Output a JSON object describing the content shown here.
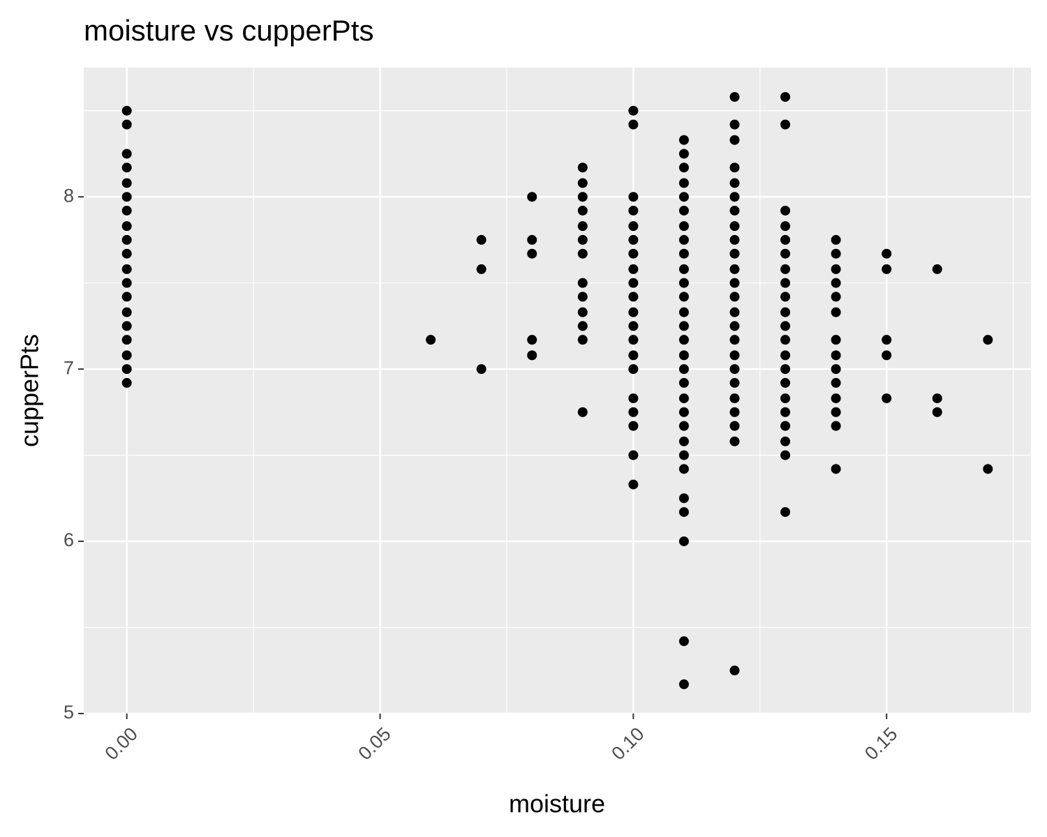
{
  "chart_data": {
    "type": "scatter",
    "title": "moisture vs cupperPts",
    "x_label": "moisture",
    "y_label": "cupperPts",
    "x": [
      0,
      0,
      0,
      0,
      0,
      0,
      0,
      0,
      0,
      0,
      0,
      0,
      0,
      0,
      0,
      0,
      0,
      0,
      0,
      0.06,
      0.07,
      0.07,
      0.07,
      0.08,
      0.08,
      0.08,
      0.08,
      0.08,
      0.09,
      0.09,
      0.09,
      0.09,
      0.09,
      0.09,
      0.09,
      0.09,
      0.09,
      0.09,
      0.09,
      0.09,
      0.09,
      0.1,
      0.1,
      0.1,
      0.1,
      0.1,
      0.1,
      0.1,
      0.1,
      0.1,
      0.1,
      0.1,
      0.1,
      0.1,
      0.1,
      0.1,
      0.1,
      0.1,
      0.1,
      0.1,
      0.1,
      0.11,
      0.11,
      0.11,
      0.11,
      0.11,
      0.11,
      0.11,
      0.11,
      0.11,
      0.11,
      0.11,
      0.11,
      0.11,
      0.11,
      0.11,
      0.11,
      0.11,
      0.11,
      0.11,
      0.11,
      0.11,
      0.11,
      0.11,
      0.11,
      0.11,
      0.11,
      0.11,
      0.11,
      0.11,
      0.12,
      0.12,
      0.12,
      0.12,
      0.12,
      0.12,
      0.12,
      0.12,
      0.12,
      0.12,
      0.12,
      0.12,
      0.12,
      0.12,
      0.12,
      0.12,
      0.12,
      0.12,
      0.12,
      0.12,
      0.12,
      0.12,
      0.12,
      0.12,
      0.13,
      0.13,
      0.13,
      0.13,
      0.13,
      0.13,
      0.13,
      0.13,
      0.13,
      0.13,
      0.13,
      0.13,
      0.13,
      0.13,
      0.13,
      0.13,
      0.13,
      0.13,
      0.13,
      0.13,
      0.13,
      0.14,
      0.14,
      0.14,
      0.14,
      0.14,
      0.14,
      0.14,
      0.14,
      0.14,
      0.14,
      0.14,
      0.14,
      0.14,
      0.14,
      0.15,
      0.15,
      0.15,
      0.15,
      0.15,
      0.16,
      0.16,
      0.16,
      0.17,
      0.17
    ],
    "values": [
      8.5,
      8.42,
      8.25,
      8.17,
      8.08,
      8.0,
      7.92,
      7.83,
      7.75,
      7.67,
      7.58,
      7.5,
      7.42,
      7.33,
      7.25,
      7.17,
      7.08,
      7.0,
      6.92,
      7.17,
      7.75,
      7.58,
      7.0,
      8.0,
      7.75,
      7.67,
      7.17,
      7.08,
      8.17,
      8.08,
      8.0,
      7.92,
      7.83,
      7.75,
      7.67,
      7.5,
      7.42,
      7.33,
      7.25,
      7.17,
      6.75,
      8.5,
      8.42,
      8.0,
      7.92,
      7.83,
      7.75,
      7.67,
      7.58,
      7.5,
      7.42,
      7.33,
      7.25,
      7.17,
      7.08,
      7.0,
      6.83,
      6.75,
      6.67,
      6.5,
      6.33,
      8.33,
      8.25,
      8.17,
      8.08,
      8.0,
      7.92,
      7.83,
      7.75,
      7.67,
      7.58,
      7.5,
      7.42,
      7.33,
      7.25,
      7.17,
      7.08,
      7.0,
      6.92,
      6.83,
      6.75,
      6.67,
      6.58,
      6.5,
      6.42,
      6.25,
      6.17,
      6.0,
      5.42,
      5.17,
      8.58,
      8.42,
      8.33,
      8.17,
      8.08,
      8.0,
      7.92,
      7.83,
      7.75,
      7.67,
      7.58,
      7.5,
      7.42,
      7.33,
      7.25,
      7.17,
      7.08,
      7.0,
      6.92,
      6.83,
      6.75,
      6.67,
      6.58,
      5.25,
      8.58,
      8.42,
      7.92,
      7.83,
      7.75,
      7.67,
      7.58,
      7.5,
      7.42,
      7.33,
      7.25,
      7.17,
      7.08,
      7.0,
      6.92,
      6.83,
      6.75,
      6.67,
      6.58,
      6.5,
      6.17,
      7.75,
      7.67,
      7.58,
      7.5,
      7.42,
      7.33,
      7.17,
      7.08,
      7.0,
      6.92,
      6.83,
      6.75,
      6.67,
      6.42,
      7.67,
      7.58,
      7.17,
      7.08,
      6.83,
      7.58,
      6.83,
      6.75,
      7.17,
      6.42
    ],
    "color": "#000000",
    "xlim": [
      -0.0085,
      0.1785
    ],
    "xticks": [
      {
        "value": 0,
        "label": "0.00"
      },
      0.05,
      {
        "value": 0.1,
        "label": "0.10"
      },
      0.15
    ],
    "ylim": [
      5.0,
      8.75
    ],
    "yticks": [
      5,
      6,
      7,
      8
    ],
    "grid": true
  }
}
